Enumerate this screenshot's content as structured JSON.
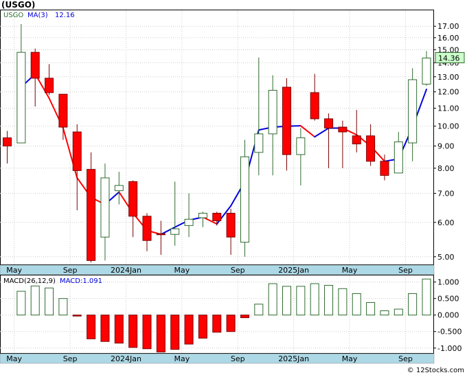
{
  "title": "(USGO)",
  "watermark": "© 12Stocks.com",
  "colors": {
    "up_fill": "#ffffff",
    "up_stroke": "#2e6b2e",
    "down_fill": "#ff0000",
    "down_stroke": "#7a0000",
    "ma_down": "#ff0000",
    "ma_up": "#0000dd",
    "macd_pos_stroke": "#2e6b2e",
    "macd_neg_fill": "#ff0000",
    "axis_bar": "#add8e6",
    "price_tag_bg": "#ccffcc"
  },
  "price_legend": {
    "symbol": "USGO",
    "ma_label": "MA(3)",
    "ma_value": "12.16"
  },
  "macd_legend": {
    "label": "MACD(26,12,9)",
    "value_label": "MACD:1.091"
  },
  "last_price_tag": "14.36",
  "x_labels": [
    "May",
    "Sep",
    "2024Jan",
    "May",
    "Sep",
    "2025Jan",
    "May",
    "Sep"
  ],
  "chart_data": [
    {
      "type": "candlestick",
      "title": "(USGO)",
      "y_scale": "log",
      "ylim": [
        4.8,
        18.5
      ],
      "y_ticks": [
        5.0,
        6.0,
        7.0,
        8.0,
        9.0,
        10.0,
        11.0,
        12.0,
        13.0,
        14.0,
        15.0,
        16.0,
        17.0
      ],
      "y_tick_labels": [
        "5.00",
        "6.00",
        "7.00",
        "8.00",
        "9.00",
        "10.00",
        "11.00",
        "12.00",
        "13.00",
        "14.00",
        "15.00",
        "16.00",
        "17.00"
      ],
      "x_tick_labels": [
        "May",
        "Sep",
        "2024Jan",
        "May",
        "Sep",
        "2025Jan",
        "May",
        "Sep"
      ],
      "bars": [
        {
          "o": 9.4,
          "h": 9.75,
          "l": 8.2,
          "c": 9.0
        },
        {
          "o": 9.15,
          "h": 17.2,
          "l": 9.15,
          "c": 14.8
        },
        {
          "o": 14.8,
          "h": 15.1,
          "l": 11.1,
          "c": 12.9
        },
        {
          "o": 12.9,
          "h": 13.9,
          "l": 11.8,
          "c": 11.95
        },
        {
          "o": 11.85,
          "h": 11.85,
          "l": 9.3,
          "c": 9.95
        },
        {
          "o": 9.7,
          "h": 10.1,
          "l": 6.4,
          "c": 7.9
        },
        {
          "o": 7.95,
          "h": 8.7,
          "l": 4.85,
          "c": 4.9
        },
        {
          "o": 5.55,
          "h": 8.2,
          "l": 4.9,
          "c": 7.6
        },
        {
          "o": 7.1,
          "h": 7.85,
          "l": 6.6,
          "c": 7.3
        },
        {
          "o": 7.45,
          "h": 7.5,
          "l": 5.55,
          "c": 6.2
        },
        {
          "o": 6.2,
          "h": 6.3,
          "l": 5.15,
          "c": 5.45
        },
        {
          "o": 5.65,
          "h": 6.05,
          "l": 5.05,
          "c": 5.63
        },
        {
          "o": 5.63,
          "h": 7.45,
          "l": 5.3,
          "c": 5.8
        },
        {
          "o": 5.9,
          "h": 7.0,
          "l": 5.55,
          "c": 6.1
        },
        {
          "o": 6.15,
          "h": 6.35,
          "l": 5.85,
          "c": 6.3
        },
        {
          "o": 6.3,
          "h": 6.35,
          "l": 5.9,
          "c": 6.05
        },
        {
          "o": 6.3,
          "h": 6.45,
          "l": 5.05,
          "c": 5.55
        },
        {
          "o": 5.4,
          "h": 9.3,
          "l": 5.0,
          "c": 8.5
        },
        {
          "o": 8.7,
          "h": 14.4,
          "l": 7.7,
          "c": 9.6
        },
        {
          "o": 9.6,
          "h": 13.1,
          "l": 7.7,
          "c": 12.1
        },
        {
          "o": 12.3,
          "h": 12.9,
          "l": 7.9,
          "c": 8.6
        },
        {
          "o": 8.6,
          "h": 9.9,
          "l": 7.3,
          "c": 9.4
        },
        {
          "o": 11.95,
          "h": 13.2,
          "l": 10.3,
          "c": 10.4
        },
        {
          "o": 10.4,
          "h": 10.7,
          "l": 8.0,
          "c": 9.9
        },
        {
          "o": 9.95,
          "h": 10.3,
          "l": 8.0,
          "c": 9.7
        },
        {
          "o": 9.5,
          "h": 10.9,
          "l": 8.7,
          "c": 9.1
        },
        {
          "o": 9.5,
          "h": 10.1,
          "l": 8.1,
          "c": 8.3
        },
        {
          "o": 8.3,
          "h": 8.6,
          "l": 7.5,
          "c": 7.7
        },
        {
          "o": 7.8,
          "h": 9.7,
          "l": 7.8,
          "c": 9.2
        },
        {
          "o": 9.15,
          "h": 13.6,
          "l": 8.3,
          "c": 12.8
        },
        {
          "o": 12.5,
          "h": 14.9,
          "l": 12.4,
          "c": 14.36
        }
      ],
      "ma": [
        {
          "i": 2,
          "v": 12.3
        },
        {
          "i": 3,
          "v": 13.2
        },
        {
          "i": 4,
          "v": 11.6
        },
        {
          "i": 5,
          "v": 9.9
        },
        {
          "i": 6,
          "v": 7.6
        },
        {
          "i": 7,
          "v": 6.85
        },
        {
          "i": 8,
          "v": 6.6
        },
        {
          "i": 9,
          "v": 7.05
        },
        {
          "i": 10,
          "v": 6.3
        },
        {
          "i": 11,
          "v": 5.75
        },
        {
          "i": 12,
          "v": 5.63
        },
        {
          "i": 13,
          "v": 5.85
        },
        {
          "i": 14,
          "v": 6.07
        },
        {
          "i": 15,
          "v": 6.17
        },
        {
          "i": 16,
          "v": 5.95
        },
        {
          "i": 17,
          "v": 6.55
        },
        {
          "i": 18,
          "v": 7.45
        },
        {
          "i": 19,
          "v": 9.8
        },
        {
          "i": 20,
          "v": 9.95
        },
        {
          "i": 21,
          "v": 10.0
        },
        {
          "i": 22,
          "v": 10.02
        },
        {
          "i": 23,
          "v": 9.45
        },
        {
          "i": 24,
          "v": 9.9
        },
        {
          "i": 25,
          "v": 9.9
        },
        {
          "i": 26,
          "v": 9.55
        },
        {
          "i": 27,
          "v": 9.0
        },
        {
          "i": 28,
          "v": 8.3
        },
        {
          "i": 29,
          "v": 8.4
        },
        {
          "i": 30,
          "v": 9.95
        },
        {
          "i": 31,
          "v": 12.16
        }
      ]
    },
    {
      "type": "bar",
      "title": "MACD(26,12,9)",
      "ylim": [
        -1.15,
        1.2
      ],
      "y_ticks": [
        1.0,
        0.5,
        0.0,
        -0.5,
        -1.0
      ],
      "y_tick_labels": [
        "1.000",
        "0.500",
        "0.000",
        "-0.500",
        "-1.000"
      ],
      "values": [
        0.72,
        0.88,
        0.82,
        0.5,
        -0.03,
        -0.72,
        -0.8,
        -0.85,
        -0.98,
        -1.02,
        -1.12,
        -1.04,
        -0.88,
        -0.7,
        -0.52,
        -0.5,
        -0.08,
        0.33,
        0.95,
        0.87,
        0.87,
        0.95,
        0.9,
        0.8,
        0.65,
        0.38,
        0.13,
        0.18,
        0.65,
        1.091
      ]
    }
  ]
}
